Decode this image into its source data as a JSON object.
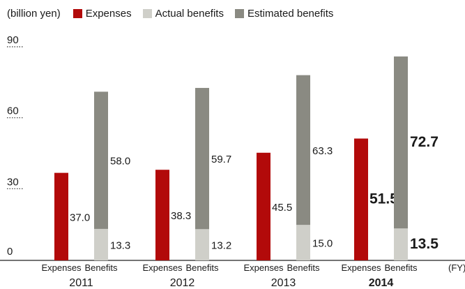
{
  "chart_data": {
    "type": "bar",
    "stacked_benefits": true,
    "unit_label": "(billion yen)",
    "x_unit_label": "(FY)",
    "legend": [
      {
        "label": "Expenses",
        "color": "#b20a0a"
      },
      {
        "label": "Actual benefits",
        "color": "#cfcfc9"
      },
      {
        "label": "Estimated benefits",
        "color": "#8a8a82"
      }
    ],
    "ylim": [
      0,
      90
    ],
    "yticks": [
      "0",
      "30",
      "60",
      "90"
    ],
    "ytick_values": [
      0,
      30,
      60,
      90
    ],
    "bar_labels": {
      "expenses": "Expenses",
      "benefits": "Benefits"
    },
    "categories": [
      "2011",
      "2012",
      "2013",
      "2014"
    ],
    "highlight_category": "2014",
    "series": [
      {
        "name": "Expenses",
        "values": [
          37.0,
          38.3,
          45.5,
          51.5
        ],
        "labels": [
          "37.0",
          "38.3",
          "45.5",
          "51.5"
        ]
      },
      {
        "name": "Actual benefits",
        "values": [
          13.3,
          13.2,
          15.0,
          13.5
        ],
        "labels": [
          "13.3",
          "13.2",
          "15.0",
          "13.5"
        ]
      },
      {
        "name": "Estimated benefits",
        "values": [
          58.0,
          59.7,
          63.3,
          72.7
        ],
        "labels": [
          "58.0",
          "59.7",
          "63.3",
          "72.7"
        ]
      }
    ]
  }
}
